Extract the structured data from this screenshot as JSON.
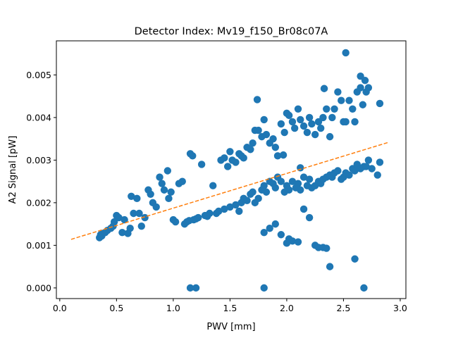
{
  "chart_data": {
    "type": "scatter",
    "title": "Detector Index: Mv19_f150_Br08c07A",
    "xlabel": "PWV [mm]",
    "ylabel": "A2 Signal [pW]",
    "xlim": [
      -0.03,
      3.05
    ],
    "ylim": [
      -0.00025,
      0.0058
    ],
    "xticks": [
      0.0,
      0.5,
      1.0,
      1.5,
      2.0,
      2.5,
      3.0
    ],
    "xtick_labels": [
      "0.0",
      "0.5",
      "1.0",
      "1.5",
      "2.0",
      "2.5",
      "3.0"
    ],
    "yticks": [
      0.0,
      0.001,
      0.002,
      0.003,
      0.004,
      0.005
    ],
    "ytick_labels": [
      "0.000",
      "0.001",
      "0.002",
      "0.003",
      "0.004",
      "0.005"
    ],
    "grid": false,
    "series": [
      {
        "name": "Data",
        "kind": "scatter",
        "color": "#1f77b4",
        "points": [
          [
            0.35,
            0.00118
          ],
          [
            0.36,
            0.00125
          ],
          [
            0.37,
            0.00122
          ],
          [
            0.38,
            0.00128
          ],
          [
            0.4,
            0.0013
          ],
          [
            0.42,
            0.00135
          ],
          [
            0.45,
            0.0014
          ],
          [
            0.47,
            0.00145
          ],
          [
            0.48,
            0.00155
          ],
          [
            0.5,
            0.0017
          ],
          [
            0.52,
            0.00165
          ],
          [
            0.55,
            0.0013
          ],
          [
            0.57,
            0.0016
          ],
          [
            0.6,
            0.00128
          ],
          [
            0.62,
            0.0014
          ],
          [
            0.63,
            0.00215
          ],
          [
            0.65,
            0.00175
          ],
          [
            0.68,
            0.0021
          ],
          [
            0.7,
            0.00175
          ],
          [
            0.72,
            0.00145
          ],
          [
            0.75,
            0.00165
          ],
          [
            0.78,
            0.0023
          ],
          [
            0.8,
            0.0022
          ],
          [
            0.82,
            0.002
          ],
          [
            0.85,
            0.0019
          ],
          [
            0.88,
            0.0026
          ],
          [
            0.9,
            0.00245
          ],
          [
            0.92,
            0.0023
          ],
          [
            0.95,
            0.00275
          ],
          [
            0.96,
            0.0021
          ],
          [
            0.98,
            0.00225
          ],
          [
            1.0,
            0.0016
          ],
          [
            1.02,
            0.00155
          ],
          [
            1.05,
            0.00245
          ],
          [
            1.08,
            0.0025
          ],
          [
            1.1,
            0.0015
          ],
          [
            1.12,
            0.00155
          ],
          [
            1.14,
            0.00158
          ],
          [
            1.15,
            0.00315
          ],
          [
            1.17,
            0.0031
          ],
          [
            1.18,
            0.0016
          ],
          [
            1.2,
            0.00162
          ],
          [
            1.22,
            0.00165
          ],
          [
            1.25,
            0.0029
          ],
          [
            1.28,
            0.0017
          ],
          [
            1.3,
            0.00168
          ],
          [
            1.32,
            0.00175
          ],
          [
            1.35,
            0.0024
          ],
          [
            1.38,
            0.00175
          ],
          [
            1.4,
            0.0018
          ],
          [
            1.42,
            0.003
          ],
          [
            1.45,
            0.00185
          ],
          [
            1.48,
            0.00285
          ],
          [
            1.5,
            0.0019
          ],
          [
            1.52,
            0.003
          ],
          [
            1.55,
            0.00195
          ],
          [
            1.58,
            0.0018
          ],
          [
            1.6,
            0.002
          ],
          [
            1.62,
            0.0021
          ],
          [
            1.65,
            0.00205
          ],
          [
            1.68,
            0.0022
          ],
          [
            1.7,
            0.00225
          ],
          [
            1.72,
            0.002
          ],
          [
            1.75,
            0.0021
          ],
          [
            1.78,
            0.0023
          ],
          [
            1.8,
            0.0024
          ],
          [
            1.82,
            0.00225
          ],
          [
            1.85,
            0.0025
          ],
          [
            1.88,
            0.00245
          ],
          [
            1.9,
            0.00235
          ],
          [
            1.92,
            0.0026
          ],
          [
            1.95,
            0.0025
          ],
          [
            1.98,
            0.00225
          ],
          [
            2.0,
            0.0024
          ],
          [
            2.02,
            0.0023
          ],
          [
            2.05,
            0.0025
          ],
          [
            2.08,
            0.00235
          ],
          [
            2.1,
            0.00245
          ],
          [
            2.12,
            0.0023
          ],
          [
            2.15,
            0.0026
          ],
          [
            2.18,
            0.0024
          ],
          [
            2.2,
            0.00255
          ],
          [
            2.22,
            0.00235
          ],
          [
            2.25,
            0.0024
          ],
          [
            2.28,
            0.0025
          ],
          [
            2.3,
            0.00245
          ],
          [
            2.32,
            0.00255
          ],
          [
            2.35,
            0.0026
          ],
          [
            2.38,
            0.00265
          ],
          [
            2.4,
            0.0026
          ],
          [
            2.42,
            0.0027
          ],
          [
            2.45,
            0.00275
          ],
          [
            2.48,
            0.00255
          ],
          [
            2.5,
            0.0026
          ],
          [
            2.52,
            0.0027
          ],
          [
            2.55,
            0.00265
          ],
          [
            2.58,
            0.0028
          ],
          [
            2.6,
            0.00275
          ],
          [
            2.62,
            0.0029
          ],
          [
            2.65,
            0.0028
          ],
          [
            2.68,
            0.00285
          ],
          [
            2.7,
            0.00285
          ],
          [
            2.72,
            0.003
          ],
          [
            2.75,
            0.0028
          ],
          [
            2.8,
            0.00265
          ],
          [
            2.82,
            0.00295
          ],
          [
            1.45,
            0.00305
          ],
          [
            1.5,
            0.0032
          ],
          [
            1.55,
            0.00295
          ],
          [
            1.58,
            0.00315
          ],
          [
            1.6,
            0.0031
          ],
          [
            1.62,
            0.00305
          ],
          [
            1.65,
            0.0033
          ],
          [
            1.68,
            0.00325
          ],
          [
            1.7,
            0.0034
          ],
          [
            1.72,
            0.0037
          ],
          [
            1.75,
            0.0037
          ],
          [
            1.78,
            0.00355
          ],
          [
            1.8,
            0.00395
          ],
          [
            1.82,
            0.0036
          ],
          [
            1.85,
            0.0034
          ],
          [
            1.88,
            0.0035
          ],
          [
            1.9,
            0.0033
          ],
          [
            1.92,
            0.0031
          ],
          [
            1.95,
            0.00385
          ],
          [
            1.98,
            0.00365
          ],
          [
            2.0,
            0.0041
          ],
          [
            2.02,
            0.00405
          ],
          [
            2.05,
            0.0039
          ],
          [
            2.07,
            0.00375
          ],
          [
            2.1,
            0.0042
          ],
          [
            2.12,
            0.00395
          ],
          [
            2.15,
            0.0038
          ],
          [
            2.18,
            0.00365
          ],
          [
            2.2,
            0.004
          ],
          [
            2.22,
            0.00385
          ],
          [
            2.25,
            0.0036
          ],
          [
            2.28,
            0.0039
          ],
          [
            2.3,
            0.00375
          ],
          [
            2.32,
            0.004
          ],
          [
            2.35,
            0.0042
          ],
          [
            2.38,
            0.00355
          ],
          [
            2.4,
            0.004
          ],
          [
            2.42,
            0.0042
          ],
          [
            2.45,
            0.0046
          ],
          [
            2.48,
            0.0044
          ],
          [
            2.5,
            0.0039
          ],
          [
            2.52,
            0.0039
          ],
          [
            2.55,
            0.0044
          ],
          [
            2.58,
            0.0042
          ],
          [
            2.6,
            0.0039
          ],
          [
            2.62,
            0.0046
          ],
          [
            2.65,
            0.0047
          ],
          [
            2.67,
            0.0043
          ],
          [
            2.7,
            0.0046
          ],
          [
            2.72,
            0.0047
          ],
          [
            2.52,
            0.00552
          ],
          [
            2.65,
            0.00497
          ],
          [
            2.69,
            0.00487
          ],
          [
            2.82,
            0.00433
          ],
          [
            1.74,
            0.00442
          ],
          [
            2.33,
            0.00468
          ],
          [
            1.97,
            0.00312
          ],
          [
            2.12,
            0.00282
          ],
          [
            1.8,
            0.0013
          ],
          [
            1.85,
            0.0014
          ],
          [
            1.9,
            0.0015
          ],
          [
            1.95,
            0.00125
          ],
          [
            2.0,
            0.00105
          ],
          [
            2.02,
            0.00115
          ],
          [
            2.05,
            0.0011
          ],
          [
            2.1,
            0.00108
          ],
          [
            2.15,
            0.00185
          ],
          [
            2.2,
            0.00165
          ],
          [
            2.25,
            0.001
          ],
          [
            2.28,
            0.00095
          ],
          [
            2.32,
            0.00095
          ],
          [
            2.35,
            0.00093
          ],
          [
            2.38,
            0.0005
          ],
          [
            2.6,
            0.00068
          ],
          [
            1.15,
            0.0
          ],
          [
            1.2,
            0.0
          ],
          [
            1.8,
            0.0
          ],
          [
            2.68,
            0.0
          ]
        ]
      },
      {
        "name": "Fit",
        "kind": "line",
        "style": "dashed",
        "color": "#ff7f0e",
        "x": [
          0.1,
          2.9
        ],
        "y": [
          0.00114,
          0.00342
        ]
      }
    ]
  }
}
